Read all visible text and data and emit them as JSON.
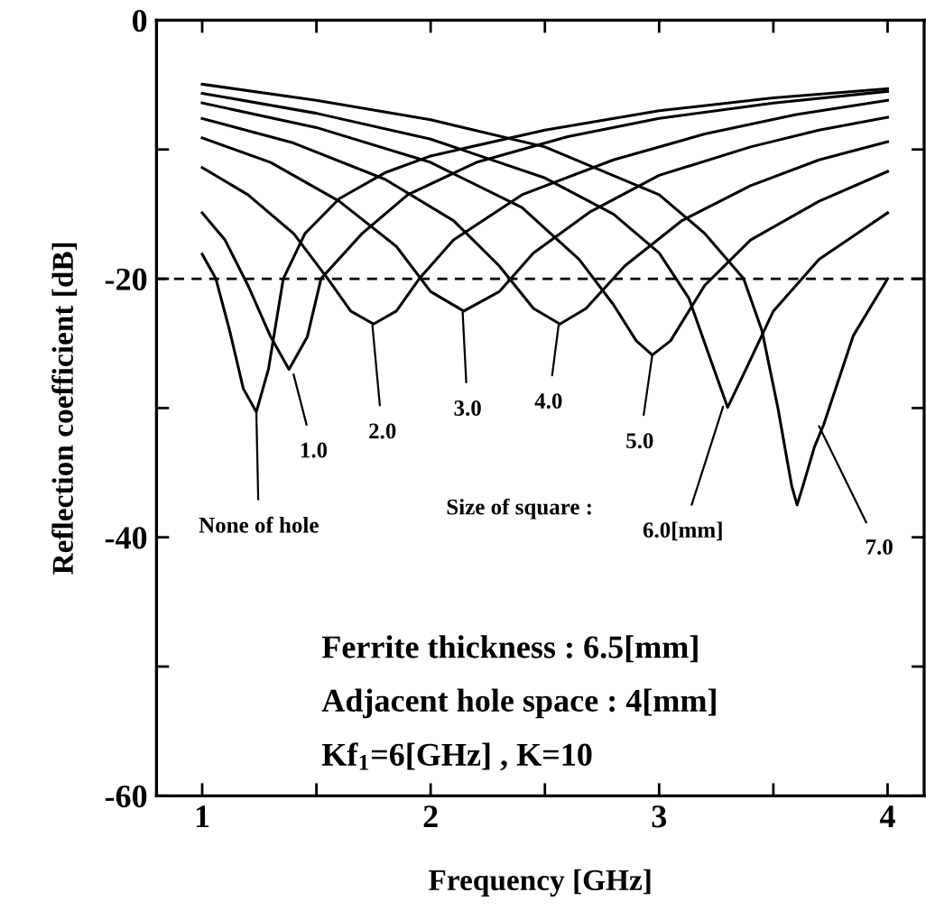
{
  "chart_data": {
    "type": "line",
    "xlabel": "Frequency [GHz]",
    "ylabel": "Reflection coefficient [dB]",
    "xlim": [
      0.8,
      4.16
    ],
    "ylim": [
      -60,
      0
    ],
    "xticks": [
      1,
      {
        "value": 1.5,
        "label": null
      },
      2,
      {
        "value": 2.5,
        "label": null
      },
      3,
      {
        "value": 3.5,
        "label": null
      },
      4
    ],
    "yticks": [
      -60,
      {
        "value": -50,
        "label": null
      },
      -40,
      {
        "value": -30,
        "label": null
      },
      -20,
      {
        "value": -10,
        "label": null
      },
      0
    ],
    "grid": false,
    "legend": false,
    "marker": "none",
    "line_style": "solid",
    "ref_lines": [
      {
        "axis": "y",
        "value": -20,
        "label": null,
        "color": "#000000",
        "line_style": "dashed"
      }
    ],
    "series": [
      {
        "color": "#000000",
        "x": [
          1,
          1.06,
          1.12,
          1.18,
          1.237,
          1.29,
          1.355,
          1.45,
          1.6,
          1.8,
          2.0,
          2.5,
          3.0,
          3.5,
          4.0
        ],
        "values": [
          -18.1,
          -20,
          -24,
          -28.5,
          -30.3,
          -27,
          -20,
          -16.5,
          -13.8,
          -11.8,
          -10.5,
          -8.5,
          -7.0,
          -6.0,
          -5.3
        ]
      },
      {
        "color": "#000000",
        "x": [
          1,
          1.1,
          1.2,
          1.3,
          1.38,
          1.46,
          1.52,
          1.7,
          1.9,
          2.2,
          2.6,
          3.0,
          3.5,
          4.0
        ],
        "values": [
          -14.9,
          -17,
          -20.5,
          -24.5,
          -27,
          -24.5,
          -20,
          -16.5,
          -13.5,
          -11,
          -9,
          -7.6,
          -6.4,
          -5.5
        ]
      },
      {
        "color": "#000000",
        "x": [
          1,
          1.2,
          1.4,
          1.55,
          1.65,
          1.75,
          1.85,
          1.95,
          2.1,
          2.4,
          2.8,
          3.2,
          3.6,
          4.0
        ],
        "values": [
          -11.4,
          -13.5,
          -16.5,
          -20,
          -22.5,
          -23.5,
          -22.5,
          -20,
          -17,
          -13.5,
          -10.8,
          -8.8,
          -7.3,
          -6.2
        ]
      },
      {
        "color": "#000000",
        "x": [
          1,
          1.3,
          1.6,
          1.85,
          2.0,
          2.145,
          2.3,
          2.45,
          2.7,
          3.0,
          3.4,
          3.7,
          4.0
        ],
        "values": [
          -9.1,
          -11,
          -14,
          -17.5,
          -21,
          -22.5,
          -21,
          -18,
          -14.8,
          -12,
          -9.8,
          -8.5,
          -7.5
        ]
      },
      {
        "color": "#000000",
        "x": [
          1,
          1.4,
          1.8,
          2.1,
          2.3,
          2.45,
          2.566,
          2.68,
          2.85,
          3.1,
          3.4,
          3.7,
          4.0
        ],
        "values": [
          -7.6,
          -9.5,
          -12.3,
          -15.5,
          -19,
          -22.3,
          -23.5,
          -22.3,
          -19,
          -15.5,
          -12.8,
          -10.8,
          -9.4
        ]
      },
      {
        "color": "#000000",
        "x": [
          1,
          1.5,
          2.0,
          2.4,
          2.65,
          2.8,
          2.9,
          2.97,
          3.05,
          3.2,
          3.4,
          3.7,
          4.0
        ],
        "values": [
          -6.4,
          -8.3,
          -11,
          -14.5,
          -18.5,
          -22,
          -24.8,
          -25.9,
          -24.8,
          -20.5,
          -17,
          -14,
          -11.7
        ]
      },
      {
        "color": "#000000",
        "x": [
          1,
          1.5,
          2.0,
          2.5,
          2.8,
          3.0,
          3.13,
          3.22,
          3.3,
          3.38,
          3.5,
          3.7,
          4.0
        ],
        "values": [
          -5.65,
          -7.2,
          -9.2,
          -12.2,
          -15,
          -18,
          -21.5,
          -26,
          -29.95,
          -27,
          -22.5,
          -18.5,
          -14.9
        ]
      },
      {
        "color": "#000000",
        "x": [
          1,
          1.5,
          2.0,
          2.5,
          3.0,
          3.2,
          3.37,
          3.45,
          3.52,
          3.58,
          3.604,
          3.63,
          3.68,
          3.72,
          3.85,
          4.0
        ],
        "values": [
          -4.95,
          -6.2,
          -7.7,
          -9.8,
          -13.5,
          -16.5,
          -20,
          -24,
          -30,
          -36,
          -37.5,
          -36,
          -33,
          -31.3,
          -24.4,
          -20
        ]
      }
    ],
    "annotations": [
      {
        "text": "None of hole",
        "x": 1.237,
        "y": -30.3
      },
      {
        "text": "1.0",
        "x": 1.4,
        "y": -27.4
      },
      {
        "text": "2.0",
        "x": 1.745,
        "y": -23.6
      },
      {
        "text": "3.0",
        "x": 2.14,
        "y": -22.6
      },
      {
        "text": "4.0",
        "x": 2.56,
        "y": -23.6
      },
      {
        "text": "5.0",
        "x": 2.97,
        "y": -25.9
      },
      {
        "text": "6.0[mm]",
        "x": 3.28,
        "y": -29.9
      },
      {
        "text": "7.0",
        "x": 3.7,
        "y": -31.4
      },
      "Size of square :",
      "Ferrite thickness : 6.5[mm]",
      "Adjacent hole space : 4[mm]",
      "Kf$_{1}$=6[GHz] , K=10"
    ]
  }
}
